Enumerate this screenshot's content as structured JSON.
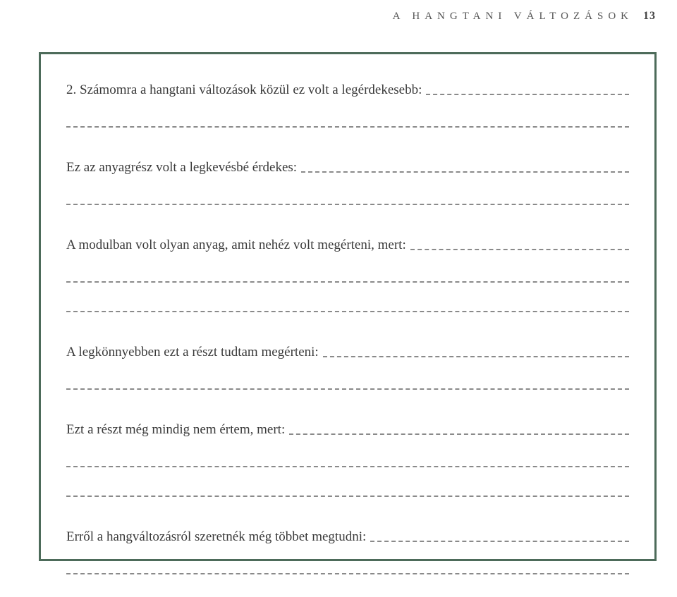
{
  "header": {
    "title": "A HANGTANI VÁLTOZÁSOK",
    "page_number": "13"
  },
  "prompts": {
    "q1": "2. Számomra a hangtani változások közül ez volt a legérdekesebb:",
    "q2": "Ez az anyagrész volt a legkevésbé érdekes:",
    "q3": "A modulban volt olyan anyag, amit nehéz volt megérteni, mert:",
    "q4": "A legkönnyebben ezt a részt tudtam megérteni:",
    "q5": "Ezt a részt még mindig nem értem, mert:",
    "q6": "Erről a hangváltozásról szeretnék még többet megtudni:"
  },
  "colors": {
    "frame": "#4d6b5a",
    "dash": "#8a8a8a",
    "text": "#3a3a3a",
    "background": "#ffffff"
  }
}
